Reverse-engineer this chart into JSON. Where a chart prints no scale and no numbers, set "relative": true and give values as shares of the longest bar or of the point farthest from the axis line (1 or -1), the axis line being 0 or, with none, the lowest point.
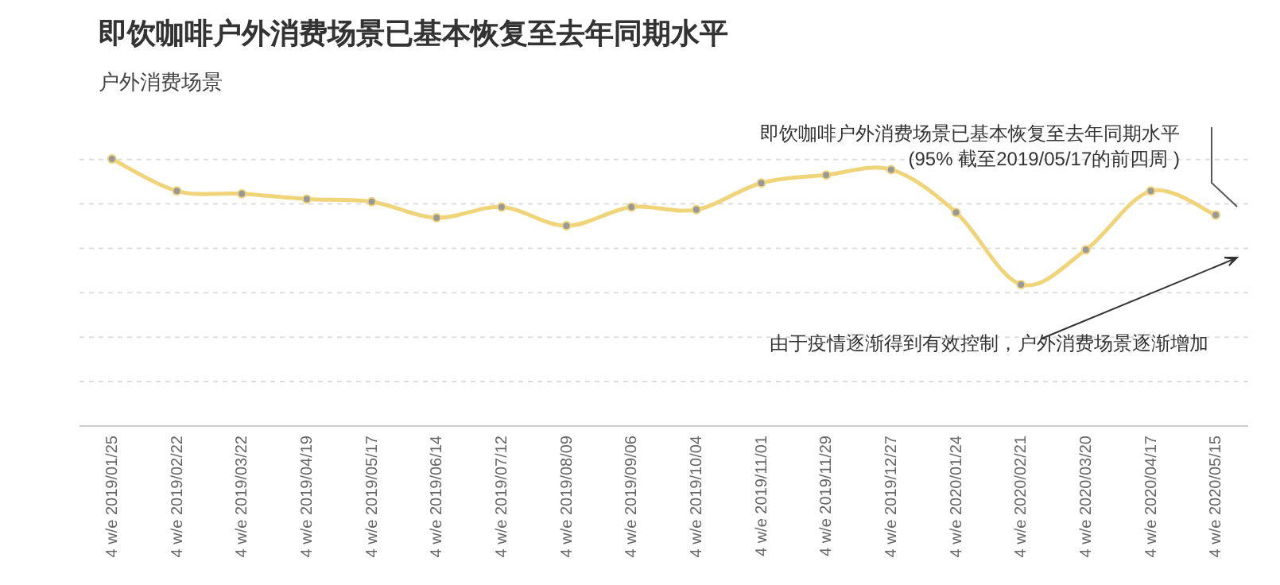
{
  "chart_data": {
    "type": "line",
    "title": "即饮咖啡户外消费场景已基本恢复至去年同期水平",
    "subtitle": "户外消费场景",
    "categories": [
      "4 w/e 2019/01/25",
      "4 w/e 2019/02/22",
      "4 w/e 2019/03/22",
      "4 w/e 2019/04/19",
      "4 w/e 2019/05/17",
      "4 w/e 2019/06/14",
      "4 w/e 2019/07/12",
      "4 w/e 2019/08/09",
      "4 w/e 2019/09/06",
      "4 w/e 2019/10/04",
      "4 w/e 2019/11/01",
      "4 w/e 2019/11/29",
      "4 w/e 2019/12/27",
      "4 w/e 2020/01/24",
      "4 w/e 2020/02/21",
      "4 w/e 2020/03/20",
      "4 w/e 2020/04/17",
      "4 w/e 2020/05/15"
    ],
    "series": [
      {
        "color": "#f0d47a",
        "values": [
          1.0,
          0.88,
          0.87,
          0.85,
          0.84,
          0.78,
          0.82,
          0.75,
          0.82,
          0.81,
          0.91,
          0.94,
          0.96,
          0.8,
          0.53,
          0.66,
          0.88,
          0.79
        ]
      }
    ],
    "relative": true,
    "grid": "y",
    "marker": "circle",
    "line_style": "solid",
    "annotations": [
      "即饮咖啡户外消费场景已基本恢复至去年同期水平\n(95% 截至2019/05/17的前四周 )",
      "由于疫情逐渐得到有效控制，户外消费场景逐渐增加"
    ]
  }
}
